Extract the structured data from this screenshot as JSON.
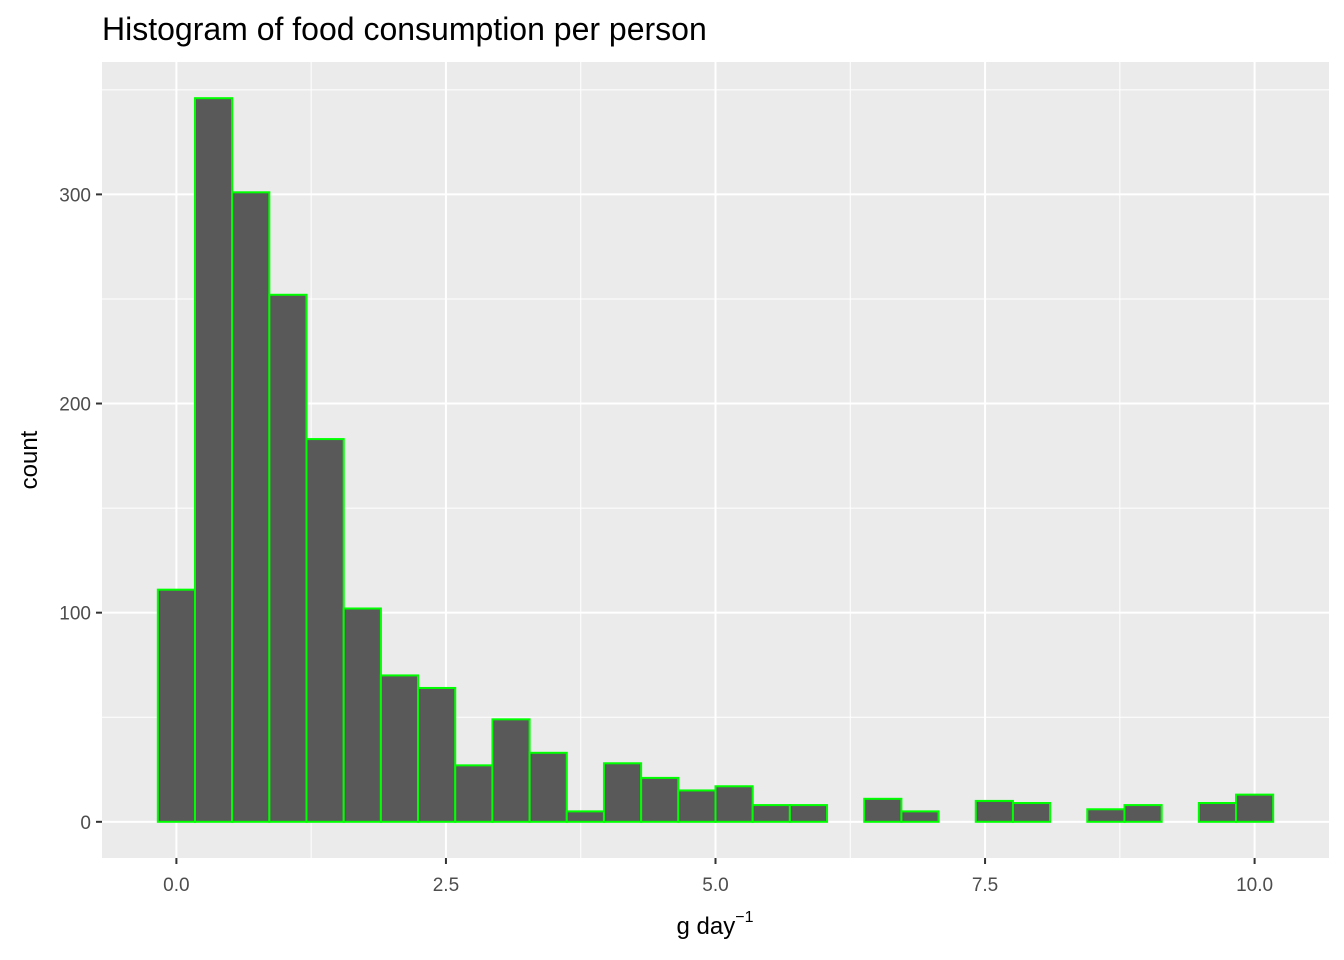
{
  "chart_data": {
    "type": "bar",
    "title": "Histogram of food consumption per person",
    "xlabel": {
      "base": "g day",
      "superscript": "−1"
    },
    "ylabel": "count",
    "bin_width": 0.3448,
    "bin_centers": [
      0.0,
      0.3448,
      0.6897,
      1.0345,
      1.3793,
      1.7241,
      2.069,
      2.4138,
      2.7586,
      3.1034,
      3.4483,
      3.7931,
      4.1379,
      4.4828,
      4.8276,
      5.1724,
      5.5172,
      5.8621,
      6.2069,
      6.5517,
      6.8966,
      7.2414,
      7.5862,
      7.931,
      8.2759,
      8.6207,
      8.9655,
      9.3103,
      9.6552,
      10.0
    ],
    "values": [
      111,
      346,
      301,
      252,
      183,
      102,
      70,
      64,
      27,
      49,
      33,
      5,
      28,
      21,
      15,
      17,
      8,
      8,
      0,
      11,
      5,
      0,
      10,
      9,
      0,
      6,
      8,
      0,
      9,
      13
    ],
    "xlim": [
      -0.69,
      10.69
    ],
    "ylim": [
      -17.3,
      363.3
    ],
    "x_ticks": [
      0.0,
      2.5,
      5.0,
      7.5,
      10.0
    ],
    "x_tick_labels": [
      "0.0",
      "2.5",
      "5.0",
      "7.5",
      "10.0"
    ],
    "y_ticks": [
      0,
      100,
      200,
      300
    ],
    "y_tick_labels": [
      "0",
      "100",
      "200",
      "300"
    ],
    "colors": {
      "panel_background": "#ebebeb",
      "grid": "#ffffff",
      "bar_fill": "#595959",
      "bar_outline": "#00ff00",
      "tick_label": "#4d4d4d",
      "tick_mark": "#333333",
      "text": "#000000"
    }
  }
}
